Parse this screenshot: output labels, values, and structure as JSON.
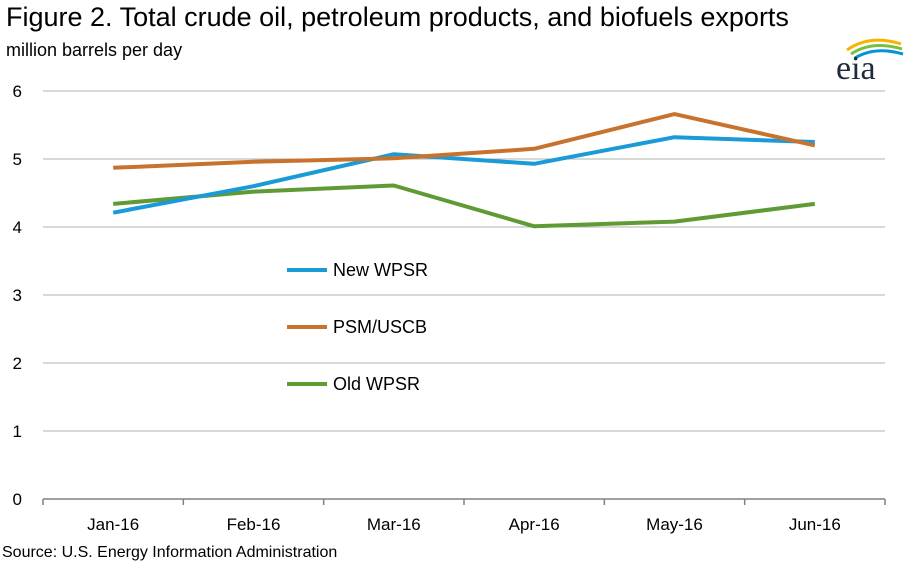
{
  "header": {
    "title": "Figure 2. Total crude oil, petroleum products, and biofuels exports",
    "subtitle": "million barrels per day"
  },
  "footer": {
    "source": "Source: U.S. Energy Information Administration"
  },
  "logo": {
    "text": "eia",
    "colors": [
      "#f5b400",
      "#7bbf3c",
      "#0096d6"
    ]
  },
  "chart_data": {
    "type": "line",
    "title": "Figure 2. Total crude oil, petroleum products, and biofuels exports",
    "ylabel": "million barrels per day",
    "xlabel": "",
    "categories": [
      "Jan-16",
      "Feb-16",
      "Mar-16",
      "Apr-16",
      "May-16",
      "Jun-16"
    ],
    "ylim": [
      0,
      6
    ],
    "yticks": [
      "0",
      "1",
      "2",
      "3",
      "4",
      "5",
      "6"
    ],
    "grid": true,
    "legend_position": "center-left",
    "series": [
      {
        "name": "New WPSR",
        "color": "#1a9ad6",
        "values": [
          4.21,
          4.6,
          5.07,
          4.93,
          5.32,
          5.25
        ]
      },
      {
        "name": "PSM/USCB",
        "color": "#c8732d",
        "values": [
          4.87,
          4.96,
          5.01,
          5.15,
          5.66,
          5.2
        ]
      },
      {
        "name": "Old WPSR",
        "color": "#5f9a34",
        "values": [
          4.34,
          4.52,
          4.61,
          4.01,
          4.08,
          4.34
        ]
      }
    ]
  }
}
